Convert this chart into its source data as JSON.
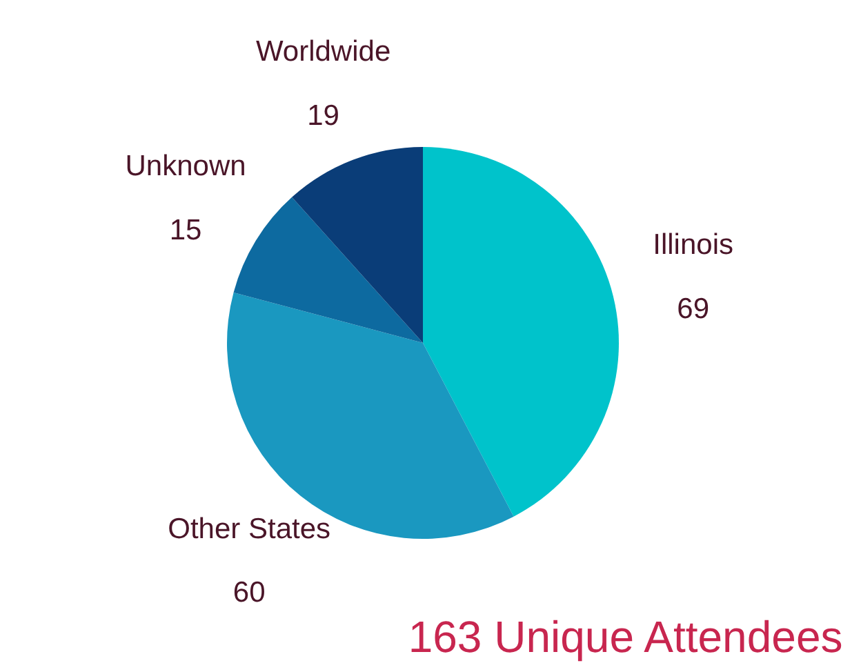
{
  "chart_data": {
    "type": "pie",
    "categories": [
      "Illinois",
      "Other States",
      "Unknown",
      "Worldwide"
    ],
    "values": [
      69,
      60,
      15,
      19
    ],
    "colors": [
      "#00c3cb",
      "#1a98c0",
      "#0d6aa0",
      "#0a3d78"
    ],
    "data_labels": true,
    "annotations": [
      "163 Unique Attendees"
    ]
  }
}
